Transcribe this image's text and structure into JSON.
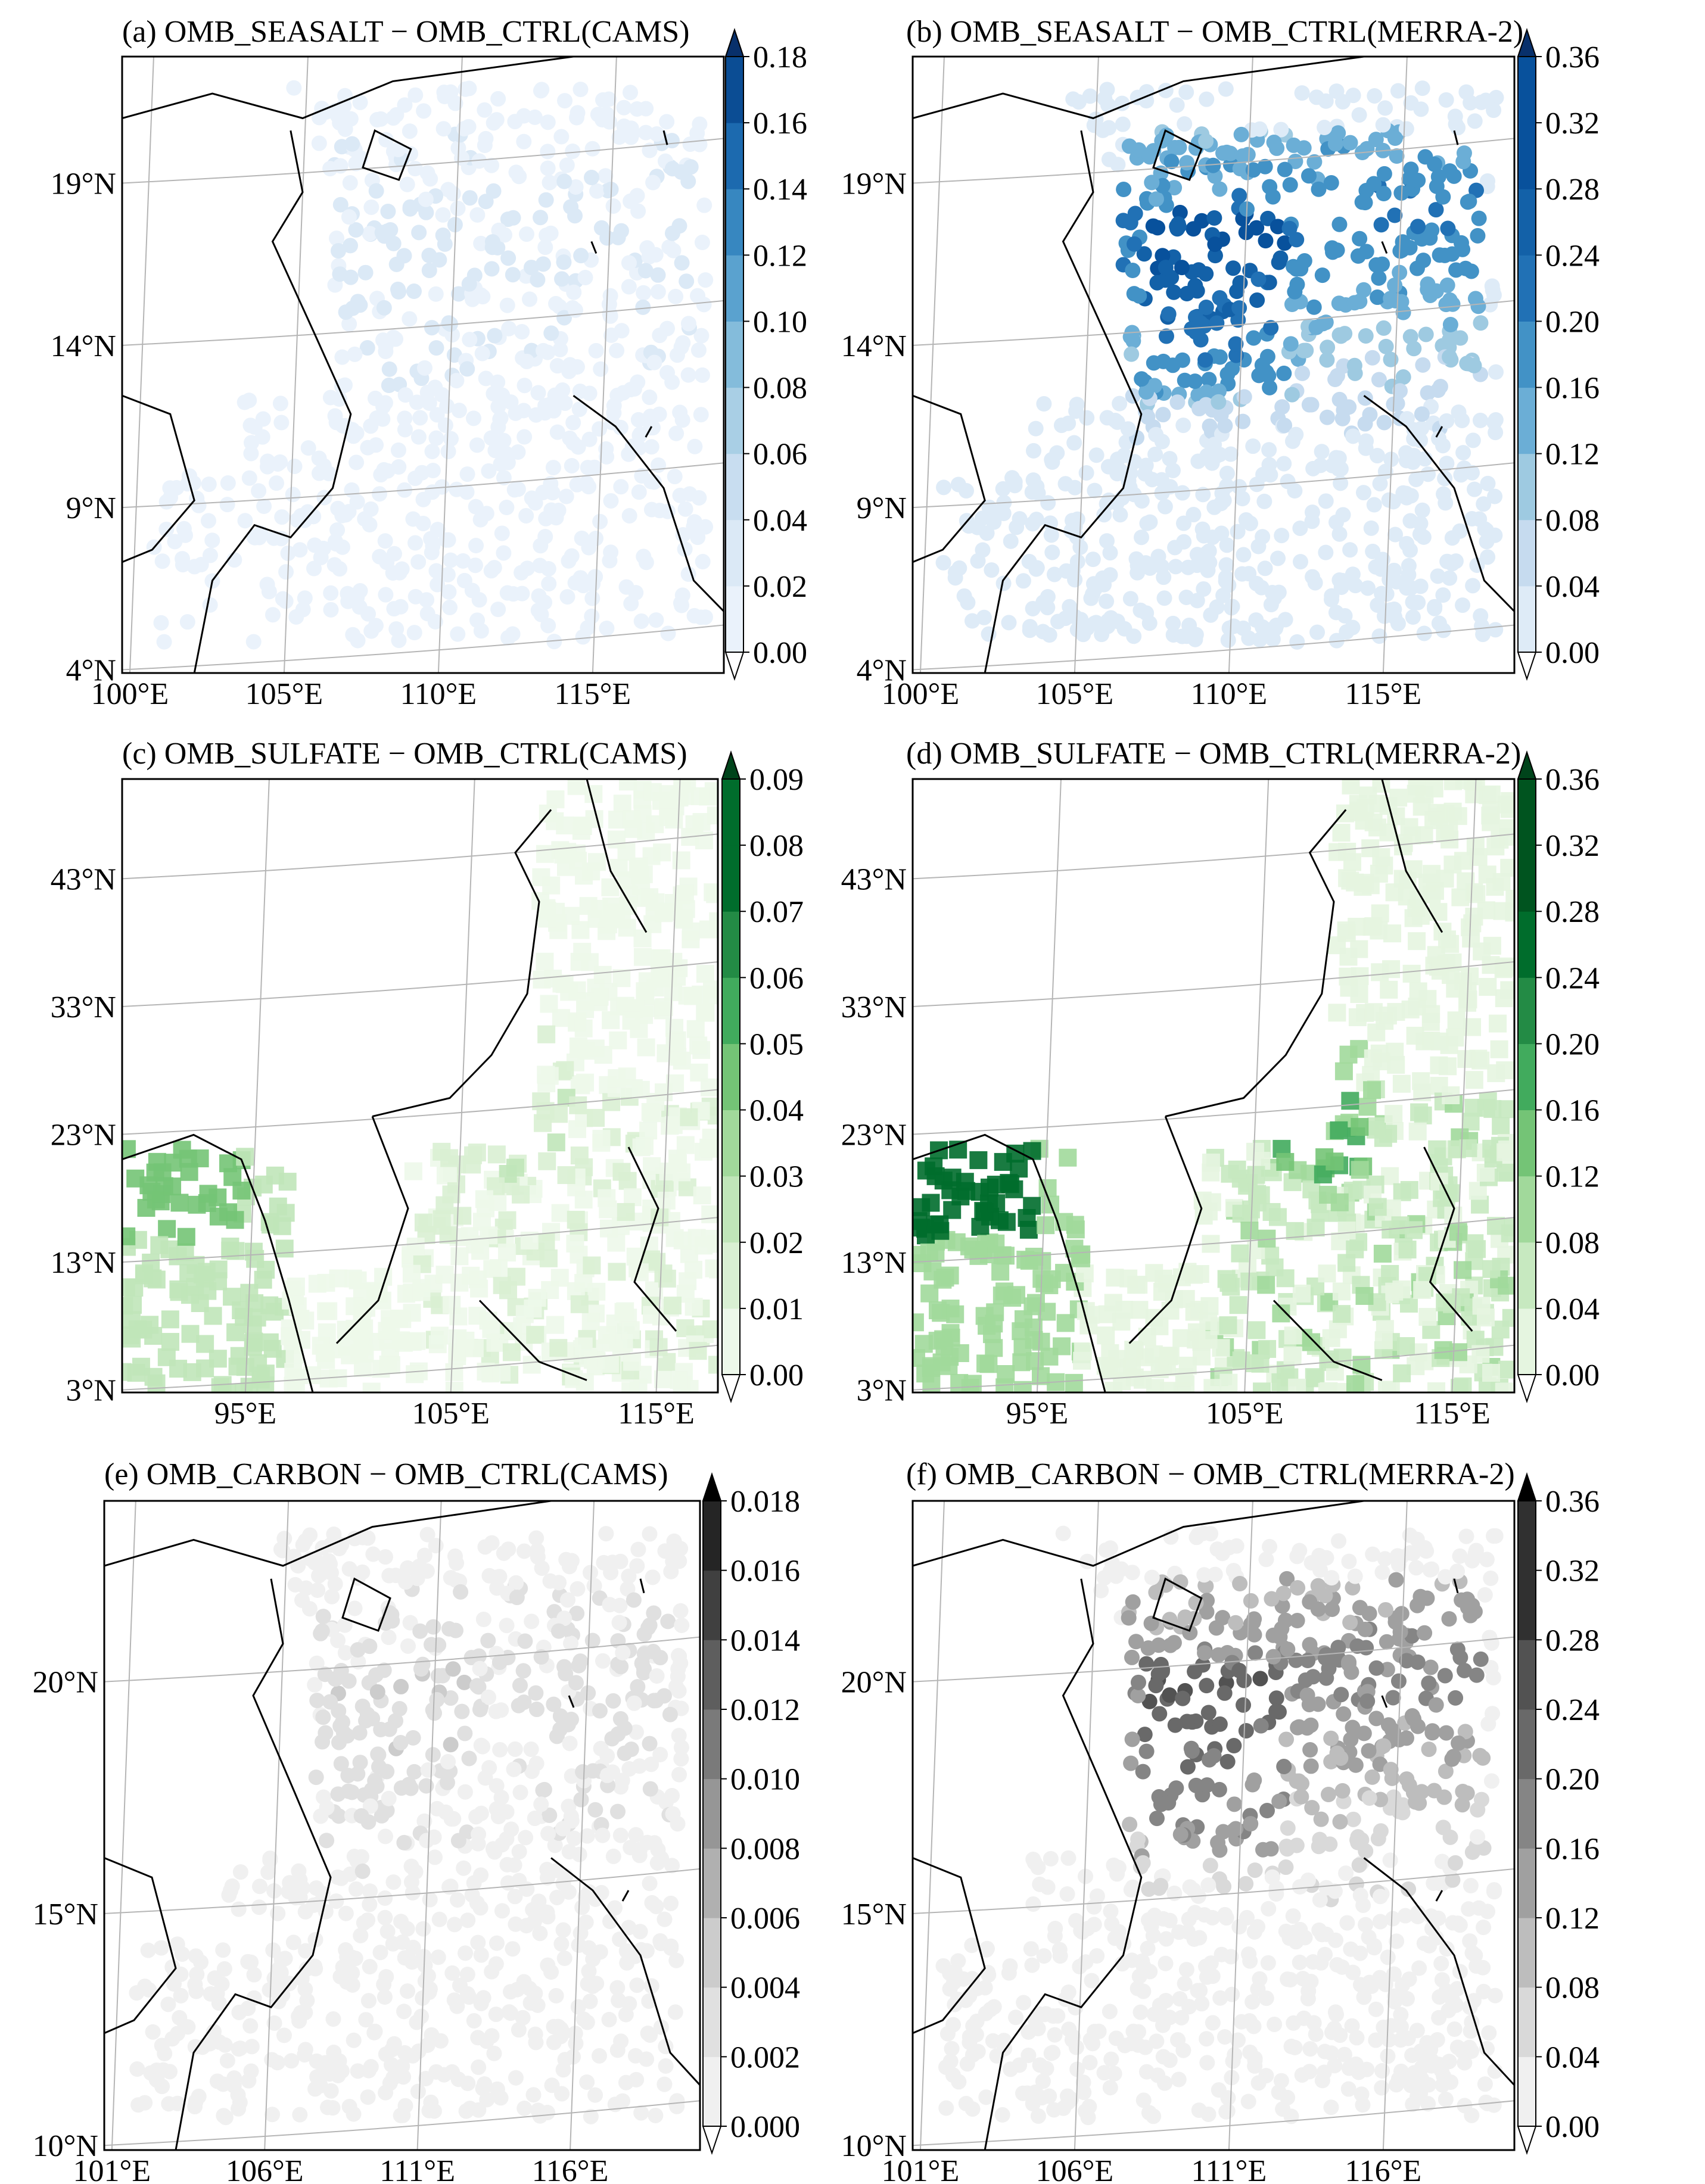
{
  "chart_data": [
    {
      "id": "a",
      "type": "heatmap",
      "title": "(a) OMB_SEASALT − OMB_CTRL(CAMS)",
      "cmap": "Blues",
      "colors": [
        "#ffffff",
        "#eaf2fb",
        "#dbe9f6",
        "#c8ddf0",
        "#a9cfe5",
        "#84bcdb",
        "#5aa2cf",
        "#3787c0",
        "#1c6aaf",
        "#0b4d94",
        "#08306b"
      ],
      "levels": [
        "0.00",
        "0.02",
        "0.04",
        "0.06",
        "0.08",
        "0.10",
        "0.12",
        "0.14",
        "0.16",
        "0.18"
      ],
      "lat_ticks": [
        "4°N",
        "9°N",
        "14°N",
        "19°N"
      ],
      "lon_ticks": [
        "100°E",
        "105°E",
        "110°E",
        "115°E"
      ],
      "extend": "both",
      "pattern": "seasalt",
      "intensity": 0.12
    },
    {
      "id": "b",
      "type": "heatmap",
      "title": "(b) OMB_SEASALT − OMB_CTRL(MERRA-2)",
      "cmap": "Blues",
      "colors": [
        "#ffffff",
        "#deebf7",
        "#c6dbef",
        "#9ecae1",
        "#6baed6",
        "#4292c6",
        "#2171b5",
        "#1361a8",
        "#08519c",
        "#08306b"
      ],
      "levels": [
        "0.00",
        "0.04",
        "0.08",
        "0.12",
        "0.16",
        "0.20",
        "0.24",
        "0.28",
        "0.32",
        "0.36"
      ],
      "lat_ticks": [
        "4°N",
        "9°N",
        "14°N",
        "19°N"
      ],
      "lon_ticks": [
        "100°E",
        "105°E",
        "110°E",
        "115°E"
      ],
      "extend": "both",
      "pattern": "seasalt",
      "intensity": 0.75
    },
    {
      "id": "c",
      "type": "heatmap",
      "title": "(c) OMB_SULFATE − OMB_CTRL(CAMS)",
      "cmap": "Greens",
      "colors": [
        "#ffffff",
        "#edf8ea",
        "#d9f0d3",
        "#c0e6b9",
        "#a1d99b",
        "#74c476",
        "#41ab5d",
        "#238b45",
        "#006d2c",
        "#00441b"
      ],
      "levels": [
        "0.00",
        "0.01",
        "0.02",
        "0.03",
        "0.04",
        "0.05",
        "0.06",
        "0.07",
        "0.08",
        "0.09"
      ],
      "lat_ticks": [
        "3°N",
        "13°N",
        "23°N",
        "33°N",
        "43°N"
      ],
      "lon_ticks": [
        "95°E",
        "105°E",
        "115°E"
      ],
      "extend": "both",
      "pattern": "sulfate",
      "intensity": 0.35
    },
    {
      "id": "d",
      "type": "heatmap",
      "title": "(d) OMB_SULFATE − OMB_CTRL(MERRA-2)",
      "cmap": "Greens",
      "colors": [
        "#ffffff",
        "#e5f5e0",
        "#c7e9c0",
        "#a1d99b",
        "#74c476",
        "#41ab5d",
        "#238b45",
        "#006d2c",
        "#00541f",
        "#00441b"
      ],
      "levels": [
        "0.00",
        "0.04",
        "0.08",
        "0.12",
        "0.16",
        "0.20",
        "0.24",
        "0.28",
        "0.32",
        "0.36"
      ],
      "lat_ticks": [
        "3°N",
        "13°N",
        "23°N",
        "33°N",
        "43°N"
      ],
      "lon_ticks": [
        "95°E",
        "105°E",
        "115°E"
      ],
      "extend": "both",
      "pattern": "sulfate",
      "intensity": 0.7
    },
    {
      "id": "e",
      "type": "heatmap",
      "title": "(e) OMB_CARBON − OMB_CTRL(CAMS)",
      "cmap": "Greys",
      "colors": [
        "#ffffff",
        "#f0f0f0",
        "#e0e0e0",
        "#cccccc",
        "#b0b0b0",
        "#969696",
        "#7a7a7a",
        "#5e5e5e",
        "#404040",
        "#252525",
        "#000000"
      ],
      "levels": [
        "0.000",
        "0.002",
        "0.004",
        "0.006",
        "0.008",
        "0.010",
        "0.012",
        "0.014",
        "0.016",
        "0.018"
      ],
      "lat_ticks": [
        "10°N",
        "15°N",
        "20°N"
      ],
      "lon_ticks": [
        "101°E",
        "106°E",
        "111°E",
        "116°E"
      ],
      "extend": "both",
      "pattern": "carbon",
      "intensity": 0.15
    },
    {
      "id": "f",
      "type": "heatmap",
      "title": "(f) OMB_CARBON − OMB_CTRL(MERRA-2)",
      "cmap": "Greys",
      "colors": [
        "#ffffff",
        "#f0f0f0",
        "#d9d9d9",
        "#bdbdbd",
        "#a0a0a0",
        "#858585",
        "#696969",
        "#525252",
        "#303030",
        "#000000"
      ],
      "levels": [
        "0.00",
        "0.04",
        "0.08",
        "0.12",
        "0.16",
        "0.20",
        "0.24",
        "0.28",
        "0.32",
        "0.36"
      ],
      "lat_ticks": [
        "10°N",
        "15°N",
        "20°N"
      ],
      "lon_ticks": [
        "101°E",
        "106°E",
        "111°E",
        "116°E"
      ],
      "extend": "both",
      "pattern": "seasalt",
      "intensity": 0.6
    }
  ]
}
